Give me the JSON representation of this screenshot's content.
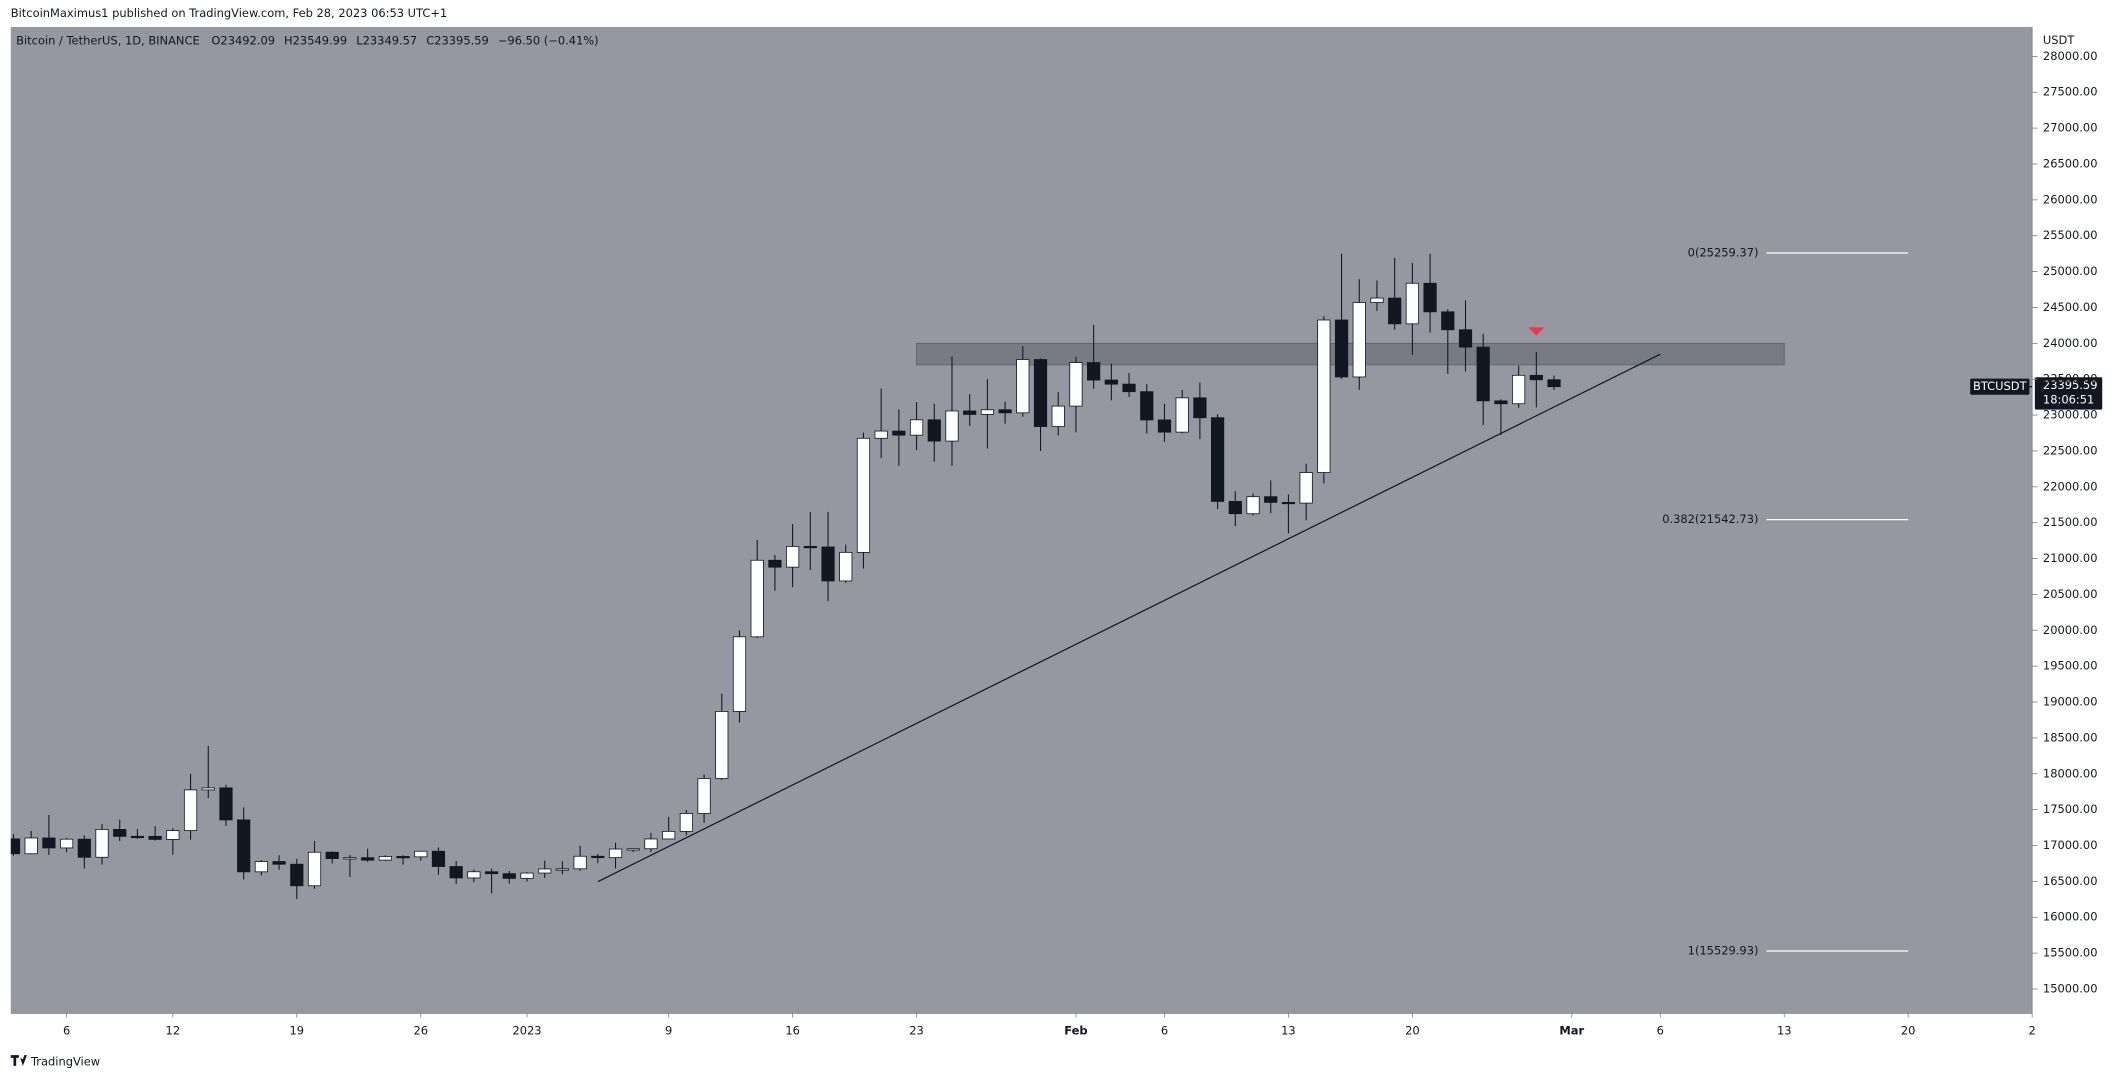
{
  "header": {
    "publisher": "BitcoinMaximus1 published on TradingView.com, Feb 28, 2023 06:53 UTC+1",
    "footer": "TradingView"
  },
  "chart_data": {
    "type": "candlestick",
    "legend": [
      "Bitcoin / TetherUS, 1D, BINANCE",
      "O23492.09",
      "H23549.99",
      "L23349.57",
      "C23395.59",
      "−96.50 (−0.41%)"
    ],
    "x": [
      "2022-12-03",
      "2022-12-04",
      "2022-12-05",
      "2022-12-06",
      "2022-12-07",
      "2022-12-08",
      "2022-12-09",
      "2022-12-10",
      "2022-12-11",
      "2022-12-12",
      "2022-12-13",
      "2022-12-14",
      "2022-12-15",
      "2022-12-16",
      "2022-12-17",
      "2022-12-18",
      "2022-12-19",
      "2022-12-20",
      "2022-12-21",
      "2022-12-22",
      "2022-12-23",
      "2022-12-24",
      "2022-12-25",
      "2022-12-26",
      "2022-12-27",
      "2022-12-28",
      "2022-12-29",
      "2022-12-30",
      "2022-12-31",
      "2023-01-01",
      "2023-01-02",
      "2023-01-03",
      "2023-01-04",
      "2023-01-05",
      "2023-01-06",
      "2023-01-07",
      "2023-01-08",
      "2023-01-09",
      "2023-01-10",
      "2023-01-11",
      "2023-01-12",
      "2023-01-13",
      "2023-01-14",
      "2023-01-15",
      "2023-01-16",
      "2023-01-17",
      "2023-01-18",
      "2023-01-19",
      "2023-01-20",
      "2023-01-21",
      "2023-01-22",
      "2023-01-23",
      "2023-01-24",
      "2023-01-25",
      "2023-01-26",
      "2023-01-27",
      "2023-01-28",
      "2023-01-29",
      "2023-01-30",
      "2023-01-31",
      "2023-02-01",
      "2023-02-02",
      "2023-02-03",
      "2023-02-04",
      "2023-02-05",
      "2023-02-06",
      "2023-02-07",
      "2023-02-08",
      "2023-02-09",
      "2023-02-10",
      "2023-02-11",
      "2023-02-12",
      "2023-02-13",
      "2023-02-14",
      "2023-02-15",
      "2023-02-16",
      "2023-02-17",
      "2023-02-18",
      "2023-02-19",
      "2023-02-20",
      "2023-02-21",
      "2023-02-22",
      "2023-02-23",
      "2023-02-24",
      "2023-02-25",
      "2023-02-26",
      "2023-02-27",
      "2023-02-28"
    ],
    "open": [
      17092,
      16885,
      17105,
      16966,
      17088,
      16836,
      17224,
      17128,
      17127,
      17085,
      17208,
      17775,
      17803,
      17357,
      16633,
      16776,
      16739,
      16439,
      16906,
      16818,
      16830,
      16796,
      16847,
      16842,
      16920,
      16707,
      16548,
      16634,
      16607,
      16542,
      16616,
      16673,
      16675,
      16850,
      16831,
      16951,
      16955,
      17091,
      17197,
      17446,
      17934,
      18869,
      19909,
      20976,
      20880,
      21169,
      21161,
      20688,
      21086,
      22676,
      22777,
      22720,
      22934,
      22637,
      23057,
      23009,
      23074,
      23031,
      23774,
      22840,
      23125,
      23732,
      23488,
      23431,
      23326,
      22932,
      22762,
      23240,
      22963,
      21796,
      21625,
      21862,
      21783,
      21773,
      22199,
      24325,
      23531,
      24569,
      24631,
      24272,
      24837,
      24439,
      24189,
      23947,
      23198,
      23158,
      23554,
      23492.09
    ],
    "high": [
      17158,
      17203,
      17425,
      17107,
      17142,
      17299,
      17360,
      17227,
      17270,
      17241,
      18000,
      18387,
      17846,
      17531,
      16796,
      16863,
      16815,
      17061,
      16918,
      16867,
      16955,
      16864,
      16865,
      16929,
      16972,
      16783,
      16664,
      16677,
      16644,
      16628,
      16789,
      16779,
      17000,
      16885,
      17041,
      16951,
      17176,
      17398,
      17495,
      17990,
      19117,
      19999,
      21258,
      21050,
      21480,
      21650,
      21650,
      21192,
      22755,
      23371,
      23078,
      23180,
      23160,
      23816,
      23290,
      23500,
      23189,
      23960,
      23789,
      23320,
      23812,
      24255,
      23715,
      23587,
      23433,
      23158,
      23350,
      23453,
      23011,
      21938,
      21906,
      22090,
      21895,
      22322,
      24380,
      25250,
      24893,
      24877,
      25192,
      25122,
      25250,
      24476,
      24600,
      24133,
      23219,
      23689,
      23880,
      23549.99
    ],
    "low": [
      16858,
      16878,
      16867,
      16906,
      16678,
      16733,
      17061,
      17092,
      17071,
      16871,
      17080,
      17660,
      17275,
      16527,
      16584,
      16663,
      16256,
      16397,
      16749,
      16560,
      16773,
      16786,
      16735,
      16789,
      16591,
      16465,
      16488,
      16333,
      16470,
      16499,
      16548,
      16600,
      16647,
      16753,
      16679,
      16908,
      16911,
      17091,
      17142,
      17316,
      17910,
      18714,
      19889,
      20552,
      20600,
      20841,
      20407,
      20659,
      20861,
      22400,
      22292,
      22512,
      22350,
      22292,
      22850,
      22534,
      22878,
      22977,
      22500,
      22715,
      22760,
      23366,
      23206,
      23253,
      22743,
      22628,
      22745,
      22665,
      21688,
      21451,
      21599,
      21631,
      21351,
      21532,
      22047,
      23505,
      23353,
      24450,
      24192,
      23840,
      24148,
      23575,
      23608,
      22861,
      22722,
      23101,
      23106,
      23349.57
    ],
    "close": [
      16885,
      17105,
      16966,
      17088,
      16836,
      17224,
      17128,
      17127,
      17085,
      17208,
      17775,
      17803,
      17357,
      16633,
      16776,
      16739,
      16439,
      16906,
      16818,
      16830,
      16796,
      16847,
      16842,
      16920,
      16707,
      16548,
      16634,
      16607,
      16542,
      16616,
      16673,
      16675,
      16850,
      16831,
      16951,
      16955,
      17091,
      17197,
      17446,
      17934,
      18869,
      19909,
      20976,
      20880,
      21169,
      21161,
      20688,
      21086,
      22676,
      22777,
      22720,
      22934,
      22637,
      23057,
      23009,
      23074,
      23031,
      23774,
      22840,
      23125,
      23732,
      23488,
      23431,
      23326,
      22932,
      22762,
      23240,
      22963,
      21796,
      21625,
      21862,
      21783,
      21773,
      22199,
      24325,
      23531,
      24569,
      24631,
      24272,
      24837,
      24439,
      24189,
      23947,
      23198,
      23158,
      23554,
      23492,
      23395.59
    ],
    "up_color": "#ffffff",
    "down_color": "#131722",
    "background": "#9598a1",
    "xlim": [
      "2022-12-03",
      "2023-03-27"
    ],
    "xticks": [
      {
        "value": "2022-12-06",
        "label": "6"
      },
      {
        "value": "2022-12-12",
        "label": "12"
      },
      {
        "value": "2022-12-19",
        "label": "19"
      },
      {
        "value": "2022-12-26",
        "label": "26"
      },
      {
        "value": "2023-01-01",
        "label": "2023"
      },
      {
        "value": "2023-01-09",
        "label": "9"
      },
      {
        "value": "2023-01-16",
        "label": "16"
      },
      {
        "value": "2023-01-23",
        "label": "23"
      },
      {
        "value": "2023-02-01",
        "label": "Feb"
      },
      {
        "value": "2023-02-06",
        "label": "6"
      },
      {
        "value": "2023-02-13",
        "label": "13"
      },
      {
        "value": "2023-02-20",
        "label": "20"
      },
      {
        "value": "2023-03-01",
        "label": "Mar"
      },
      {
        "value": "2023-03-06",
        "label": "6"
      },
      {
        "value": "2023-03-13",
        "label": "13"
      },
      {
        "value": "2023-03-20",
        "label": "20"
      },
      {
        "value": "2023-03-27",
        "label": "2"
      }
    ],
    "y_axis_label": "USDT",
    "ylim": [
      14660,
      28410
    ],
    "yticks": [
      {
        "value": 15000,
        "label": "15000.00"
      },
      {
        "value": 15500,
        "label": "15500.00"
      },
      {
        "value": 16000,
        "label": "16000.00"
      },
      {
        "value": 16500,
        "label": "16500.00"
      },
      {
        "value": 17000,
        "label": "17000.00"
      },
      {
        "value": 17500,
        "label": "17500.00"
      },
      {
        "value": 18000,
        "label": "18000.00"
      },
      {
        "value": 18500,
        "label": "18500.00"
      },
      {
        "value": 19000,
        "label": "19000.00"
      },
      {
        "value": 19500,
        "label": "19500.00"
      },
      {
        "value": 20000,
        "label": "20000.00"
      },
      {
        "value": 20500,
        "label": "20500.00"
      },
      {
        "value": 21000,
        "label": "21000.00"
      },
      {
        "value": 21500,
        "label": "21500.00"
      },
      {
        "value": 22000,
        "label": "22000.00"
      },
      {
        "value": 22500,
        "label": "22500.00"
      },
      {
        "value": 23000,
        "label": "23000.00"
      },
      {
        "value": 23500,
        "label": "23500.00"
      },
      {
        "value": 24000,
        "label": "24000.00"
      },
      {
        "value": 24500,
        "label": "24500.00"
      },
      {
        "value": 25000,
        "label": "25000.00"
      },
      {
        "value": 25500,
        "label": "25500.00"
      },
      {
        "value": 26000,
        "label": "26000.00"
      },
      {
        "value": 26500,
        "label": "26500.00"
      },
      {
        "value": 27000,
        "label": "27000.00"
      },
      {
        "value": 27500,
        "label": "27500.00"
      },
      {
        "value": 28000,
        "label": "28000.00"
      }
    ],
    "current_price": {
      "symbol": "BTCUSDT",
      "value": 23395.59,
      "countdown": "18:06:51"
    },
    "fib_levels": {
      "from": "2023-03-12",
      "to": "2023-03-20",
      "levels": [
        {
          "value": 25259.37,
          "label": "0(25259.37)"
        },
        {
          "value": 21542.73,
          "label": "0.382(21542.73)"
        },
        {
          "value": 15529.93,
          "label": "1(15529.93)"
        }
      ]
    },
    "resistance_zone": {
      "from": "2023-01-23",
      "to": "2023-03-13",
      "low": 23700,
      "high": 24000
    },
    "trendline": {
      "x": [
        "2023-01-05",
        "2023-03-06"
      ],
      "y": [
        16496,
        23848
      ]
    },
    "marker": {
      "x": "2023-02-27",
      "value": 24166,
      "color": "#f23645"
    }
  }
}
